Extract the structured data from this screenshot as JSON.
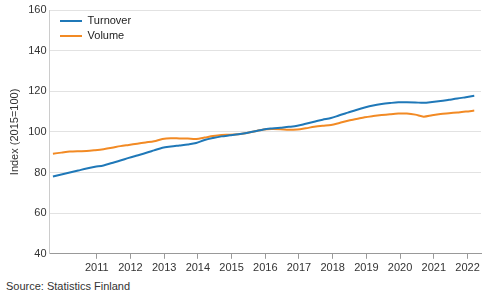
{
  "chart_data": {
    "type": "line",
    "y_label": "Index (2015=100)",
    "source": "Source: Statistics Finland",
    "x": [
      2009.7,
      2009.95,
      2010.2,
      2010.45,
      2010.7,
      2010.95,
      2011.2,
      2011.45,
      2011.7,
      2011.95,
      2012.2,
      2012.45,
      2012.7,
      2012.95,
      2013.2,
      2013.45,
      2013.7,
      2013.95,
      2014.2,
      2014.45,
      2014.7,
      2014.95,
      2015.2,
      2015.45,
      2015.7,
      2015.95,
      2016.2,
      2016.45,
      2016.7,
      2016.95,
      2017.2,
      2017.45,
      2017.7,
      2017.95,
      2018.2,
      2018.45,
      2018.7,
      2018.95,
      2019.2,
      2019.45,
      2019.7,
      2019.95,
      2020.2,
      2020.45,
      2020.7,
      2020.95,
      2021.2,
      2021.45,
      2021.7,
      2021.95,
      2022.2
    ],
    "series": [
      {
        "name": "Turnover",
        "color": "#1f78b8",
        "values": [
          78,
          79,
          80,
          81,
          82,
          82.8,
          83.5,
          84.7,
          85.9,
          87.2,
          88.4,
          89.6,
          90.9,
          92.2,
          92.8,
          93.3,
          93.8,
          94.5,
          96,
          97,
          97.8,
          98.3,
          98.8,
          99.5,
          100.3,
          101.2,
          101.7,
          102.1,
          102.5,
          103,
          104,
          105,
          106,
          106.8,
          108.2,
          109.5,
          110.8,
          112,
          113,
          113.7,
          114.2,
          114.6,
          114.6,
          114.5,
          114.3,
          114.7,
          115.2,
          115.8,
          116.4,
          117.1,
          117.8
        ]
      },
      {
        "name": "Volume",
        "color": "#f28a24",
        "values": [
          89.3,
          89.8,
          90.3,
          90.5,
          90.6,
          91,
          91.5,
          92.2,
          93,
          93.6,
          94.2,
          94.8,
          95.4,
          96.5,
          96.9,
          96.8,
          96.7,
          96.5,
          97.2,
          98,
          98.5,
          98.6,
          98.9,
          99.5,
          100.3,
          101.2,
          101.4,
          101.3,
          101,
          101.2,
          101.8,
          102.5,
          103,
          103.4,
          104.4,
          105.5,
          106.3,
          107.2,
          107.8,
          108.3,
          108.7,
          109,
          109,
          108.5,
          107.5,
          108.2,
          108.8,
          109.2,
          109.6,
          110,
          110.5
        ]
      }
    ],
    "xlim": [
      2009.6,
      2022.4
    ],
    "xticks": [
      2011,
      2012,
      2013,
      2014,
      2015,
      2016,
      2017,
      2018,
      2019,
      2020,
      2021,
      2022
    ],
    "ylim": [
      40,
      160
    ],
    "yticks": [
      40,
      60,
      80,
      100,
      120,
      140,
      160
    ],
    "grid": true,
    "legend": "top-left"
  }
}
